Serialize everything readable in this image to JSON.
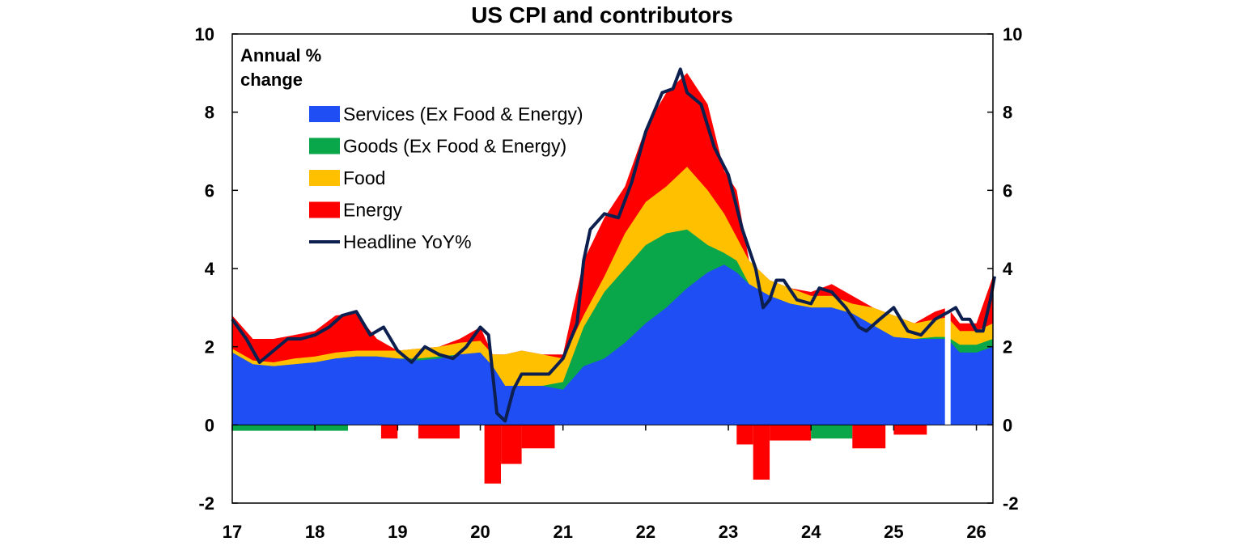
{
  "chart_data": {
    "type": "area",
    "title": "US CPI and contributors",
    "ylabel_line1": "Annual %",
    "ylabel_line2": "change",
    "ylim": [
      -2,
      10
    ],
    "yticks": [
      -2,
      0,
      2,
      4,
      6,
      8,
      10
    ],
    "ytick_labels": [
      "-2",
      "0",
      "2",
      "4",
      "6",
      "8",
      "10"
    ],
    "xlim": [
      2017,
      2026.2
    ],
    "xtick_labels": [
      "17",
      "18",
      "19",
      "20",
      "21",
      "22",
      "23",
      "24",
      "25",
      "26"
    ],
    "x_unit": "year",
    "legend_position": "upper-left inside",
    "colors": {
      "services": "#1f4ef5",
      "goods": "#0aa64a",
      "food": "#ffc000",
      "energy": "#ff0000",
      "headline": "#0d1f4f"
    },
    "series": [
      {
        "key": "services",
        "name": "Services (Ex Food & Energy)",
        "points": [
          [
            2017,
            1.85
          ],
          [
            2017.25,
            1.55
          ],
          [
            2017.5,
            1.5
          ],
          [
            2017.75,
            1.55
          ],
          [
            2018,
            1.6
          ],
          [
            2018.25,
            1.7
          ],
          [
            2018.5,
            1.75
          ],
          [
            2018.75,
            1.75
          ],
          [
            2019,
            1.7
          ],
          [
            2019.25,
            1.65
          ],
          [
            2019.5,
            1.7
          ],
          [
            2019.75,
            1.8
          ],
          [
            2020,
            1.85
          ],
          [
            2020.15,
            1.5
          ],
          [
            2020.3,
            1.0
          ],
          [
            2020.5,
            1.0
          ],
          [
            2020.75,
            1.0
          ],
          [
            2021,
            0.9
          ],
          [
            2021.25,
            1.5
          ],
          [
            2021.5,
            1.7
          ],
          [
            2021.75,
            2.1
          ],
          [
            2022,
            2.6
          ],
          [
            2022.25,
            3.0
          ],
          [
            2022.5,
            3.5
          ],
          [
            2022.75,
            3.9
          ],
          [
            2022.95,
            4.1
          ],
          [
            2023.1,
            3.9
          ],
          [
            2023.25,
            3.6
          ],
          [
            2023.5,
            3.3
          ],
          [
            2023.75,
            3.1
          ],
          [
            2024,
            3.0
          ],
          [
            2024.25,
            3.0
          ],
          [
            2024.5,
            2.85
          ],
          [
            2024.75,
            2.55
          ],
          [
            2025,
            2.25
          ],
          [
            2025.25,
            2.2
          ],
          [
            2025.5,
            2.2
          ],
          [
            2025.65,
            2.2
          ],
          [
            2025.8,
            1.85
          ],
          [
            2026,
            1.85
          ],
          [
            2026.2,
            2.0
          ]
        ]
      },
      {
        "key": "goods",
        "name": "Goods (Ex Food & Energy)",
        "points": [
          [
            2017,
            1.85
          ],
          [
            2017.25,
            1.55
          ],
          [
            2017.5,
            1.5
          ],
          [
            2017.75,
            1.55
          ],
          [
            2018,
            1.6
          ],
          [
            2018.25,
            1.7
          ],
          [
            2018.5,
            1.75
          ],
          [
            2018.75,
            1.75
          ],
          [
            2019,
            1.7
          ],
          [
            2019.25,
            1.7
          ],
          [
            2019.5,
            1.75
          ],
          [
            2019.75,
            1.8
          ],
          [
            2020,
            1.85
          ],
          [
            2020.15,
            1.5
          ],
          [
            2020.3,
            1.0
          ],
          [
            2020.5,
            1.0
          ],
          [
            2020.75,
            1.0
          ],
          [
            2021,
            1.1
          ],
          [
            2021.25,
            2.5
          ],
          [
            2021.5,
            3.4
          ],
          [
            2021.75,
            4.0
          ],
          [
            2022,
            4.6
          ],
          [
            2022.25,
            4.9
          ],
          [
            2022.5,
            5.0
          ],
          [
            2022.75,
            4.6
          ],
          [
            2022.95,
            4.4
          ],
          [
            2023.1,
            4.2
          ],
          [
            2023.25,
            3.6
          ],
          [
            2023.5,
            3.3
          ],
          [
            2023.75,
            3.1
          ],
          [
            2024,
            3.0
          ],
          [
            2024.25,
            3.0
          ],
          [
            2024.5,
            2.85
          ],
          [
            2024.75,
            2.55
          ],
          [
            2025,
            2.25
          ],
          [
            2025.25,
            2.2
          ],
          [
            2025.5,
            2.25
          ],
          [
            2025.65,
            2.25
          ],
          [
            2025.8,
            2.05
          ],
          [
            2026,
            2.05
          ],
          [
            2026.2,
            2.2
          ]
        ]
      },
      {
        "key": "food",
        "name": "Food",
        "points": [
          [
            2017,
            1.95
          ],
          [
            2017.25,
            1.65
          ],
          [
            2017.5,
            1.6
          ],
          [
            2017.75,
            1.7
          ],
          [
            2018,
            1.75
          ],
          [
            2018.25,
            1.85
          ],
          [
            2018.5,
            1.9
          ],
          [
            2018.75,
            1.9
          ],
          [
            2019,
            1.9
          ],
          [
            2019.25,
            1.95
          ],
          [
            2019.5,
            2.0
          ],
          [
            2019.75,
            2.1
          ],
          [
            2020,
            2.15
          ],
          [
            2020.15,
            1.8
          ],
          [
            2020.3,
            1.8
          ],
          [
            2020.5,
            1.9
          ],
          [
            2020.75,
            1.8
          ],
          [
            2021,
            1.7
          ],
          [
            2021.25,
            2.8
          ],
          [
            2021.5,
            3.8
          ],
          [
            2021.75,
            4.9
          ],
          [
            2022,
            5.7
          ],
          [
            2022.25,
            6.1
          ],
          [
            2022.5,
            6.6
          ],
          [
            2022.75,
            6.0
          ],
          [
            2022.95,
            5.4
          ],
          [
            2023.1,
            4.8
          ],
          [
            2023.25,
            4.2
          ],
          [
            2023.5,
            3.7
          ],
          [
            2023.75,
            3.5
          ],
          [
            2024,
            3.3
          ],
          [
            2024.25,
            3.3
          ],
          [
            2024.5,
            3.1
          ],
          [
            2024.75,
            3.0
          ],
          [
            2025,
            2.8
          ],
          [
            2025.25,
            2.6
          ],
          [
            2025.5,
            2.7
          ],
          [
            2025.65,
            2.75
          ],
          [
            2025.8,
            2.4
          ],
          [
            2026,
            2.4
          ],
          [
            2026.2,
            2.6
          ]
        ]
      },
      {
        "key": "energy",
        "name": "Energy",
        "points": [
          [
            2017,
            2.8
          ],
          [
            2017.25,
            2.2
          ],
          [
            2017.5,
            2.2
          ],
          [
            2017.75,
            2.3
          ],
          [
            2018,
            2.4
          ],
          [
            2018.25,
            2.8
          ],
          [
            2018.5,
            2.85
          ],
          [
            2018.75,
            2.2
          ],
          [
            2019,
            1.9
          ],
          [
            2019.25,
            1.95
          ],
          [
            2019.5,
            2.0
          ],
          [
            2019.75,
            2.2
          ],
          [
            2020,
            2.5
          ],
          [
            2020.15,
            1.8
          ],
          [
            2020.3,
            1.8
          ],
          [
            2020.5,
            1.9
          ],
          [
            2020.75,
            1.8
          ],
          [
            2021,
            1.8
          ],
          [
            2021.25,
            4.2
          ],
          [
            2021.5,
            5.3
          ],
          [
            2021.75,
            6.1
          ],
          [
            2022,
            7.6
          ],
          [
            2022.25,
            8.5
          ],
          [
            2022.5,
            9.0
          ],
          [
            2022.75,
            8.2
          ],
          [
            2022.95,
            6.5
          ],
          [
            2023.1,
            6.0
          ],
          [
            2023.25,
            4.2
          ],
          [
            2023.5,
            3.7
          ],
          [
            2023.75,
            3.5
          ],
          [
            2024,
            3.4
          ],
          [
            2024.25,
            3.6
          ],
          [
            2024.5,
            3.3
          ],
          [
            2024.75,
            3.0
          ],
          [
            2025,
            2.8
          ],
          [
            2025.25,
            2.6
          ],
          [
            2025.5,
            2.9
          ],
          [
            2025.65,
            3.0
          ],
          [
            2025.8,
            2.6
          ],
          [
            2026,
            2.6
          ],
          [
            2026.2,
            3.8
          ]
        ]
      },
      {
        "key": "headline",
        "name": "Headline YoY%",
        "points": [
          [
            2017.0,
            2.7
          ],
          [
            2017.17,
            2.2
          ],
          [
            2017.33,
            1.6
          ],
          [
            2017.5,
            1.9
          ],
          [
            2017.67,
            2.2
          ],
          [
            2017.83,
            2.2
          ],
          [
            2018.0,
            2.3
          ],
          [
            2018.17,
            2.5
          ],
          [
            2018.33,
            2.8
          ],
          [
            2018.5,
            2.9
          ],
          [
            2018.67,
            2.3
          ],
          [
            2018.83,
            2.5
          ],
          [
            2019.0,
            1.9
          ],
          [
            2019.17,
            1.6
          ],
          [
            2019.33,
            2.0
          ],
          [
            2019.5,
            1.8
          ],
          [
            2019.67,
            1.7
          ],
          [
            2019.83,
            2.0
          ],
          [
            2020.0,
            2.5
          ],
          [
            2020.1,
            2.3
          ],
          [
            2020.2,
            0.3
          ],
          [
            2020.3,
            0.1
          ],
          [
            2020.4,
            0.9
          ],
          [
            2020.5,
            1.3
          ],
          [
            2020.67,
            1.3
          ],
          [
            2020.83,
            1.3
          ],
          [
            2021.0,
            1.7
          ],
          [
            2021.17,
            2.6
          ],
          [
            2021.25,
            4.2
          ],
          [
            2021.33,
            5.0
          ],
          [
            2021.5,
            5.4
          ],
          [
            2021.67,
            5.3
          ],
          [
            2021.83,
            6.2
          ],
          [
            2022.0,
            7.5
          ],
          [
            2022.1,
            8.0
          ],
          [
            2022.2,
            8.5
          ],
          [
            2022.33,
            8.6
          ],
          [
            2022.42,
            9.1
          ],
          [
            2022.5,
            8.5
          ],
          [
            2022.67,
            8.2
          ],
          [
            2022.83,
            7.1
          ],
          [
            2023.0,
            6.4
          ],
          [
            2023.17,
            5.0
          ],
          [
            2023.33,
            4.0
          ],
          [
            2023.42,
            3.0
          ],
          [
            2023.5,
            3.2
          ],
          [
            2023.58,
            3.7
          ],
          [
            2023.67,
            3.7
          ],
          [
            2023.83,
            3.2
          ],
          [
            2024.0,
            3.1
          ],
          [
            2024.1,
            3.5
          ],
          [
            2024.25,
            3.4
          ],
          [
            2024.42,
            3.0
          ],
          [
            2024.58,
            2.5
          ],
          [
            2024.67,
            2.4
          ],
          [
            2024.83,
            2.7
          ],
          [
            2025.0,
            3.0
          ],
          [
            2025.17,
            2.4
          ],
          [
            2025.33,
            2.3
          ],
          [
            2025.5,
            2.7
          ],
          [
            2025.67,
            2.9
          ],
          [
            2025.75,
            3.0
          ],
          [
            2025.83,
            2.7
          ],
          [
            2025.92,
            2.7
          ],
          [
            2026.0,
            2.4
          ],
          [
            2026.08,
            2.4
          ],
          [
            2026.17,
            3.2
          ],
          [
            2026.22,
            3.8
          ]
        ]
      }
    ],
    "energy_negative_bars": [
      {
        "from": 2017.0,
        "to": 2018.4,
        "value": -0.15,
        "key": "goods"
      },
      {
        "from": 2018.8,
        "to": 2019.0,
        "value": -0.35,
        "key": "energy"
      },
      {
        "from": 2019.25,
        "to": 2019.75,
        "value": -0.35,
        "key": "energy"
      },
      {
        "from": 2020.05,
        "to": 2020.25,
        "value": -1.5,
        "key": "energy"
      },
      {
        "from": 2020.25,
        "to": 2020.5,
        "value": -1.0,
        "key": "energy"
      },
      {
        "from": 2020.5,
        "to": 2020.9,
        "value": -0.6,
        "key": "energy"
      },
      {
        "from": 2023.1,
        "to": 2023.3,
        "value": -0.5,
        "key": "energy"
      },
      {
        "from": 2023.3,
        "to": 2023.5,
        "value": -1.4,
        "key": "energy"
      },
      {
        "from": 2023.5,
        "to": 2024.0,
        "value": -0.4,
        "key": "energy"
      },
      {
        "from": 2024.0,
        "to": 2024.5,
        "value": -0.35,
        "key": "goods"
      },
      {
        "from": 2024.5,
        "to": 2024.9,
        "value": -0.6,
        "key": "energy"
      },
      {
        "from": 2025.0,
        "to": 2025.4,
        "value": -0.25,
        "key": "energy"
      }
    ]
  }
}
